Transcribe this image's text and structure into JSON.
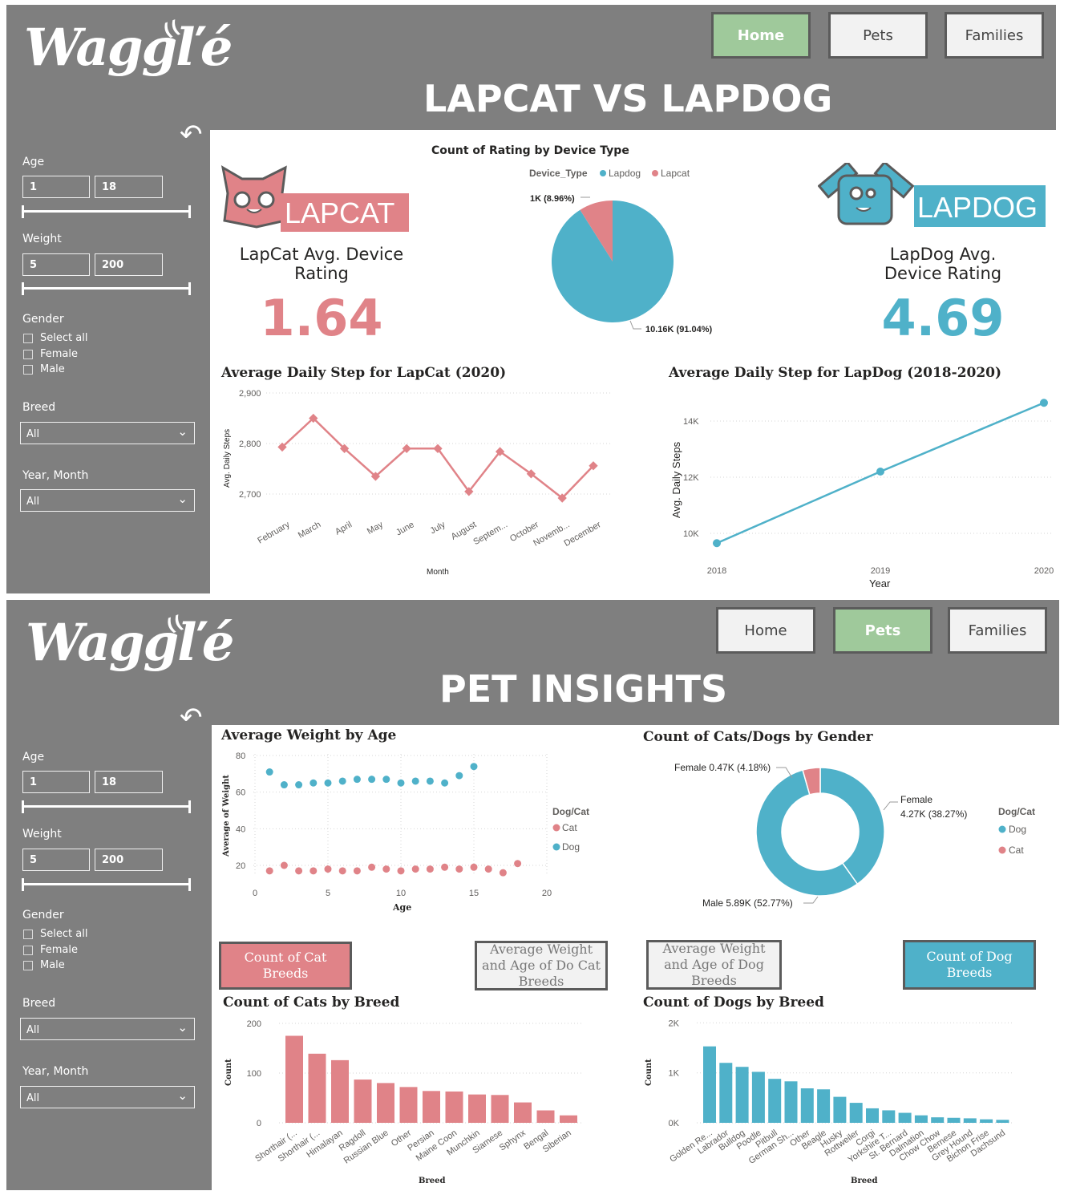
{
  "brand": {
    "logo": "Waggľé",
    "logo_mark": "(("
  },
  "colors": {
    "cat": "#e08388",
    "dog": "#4fb1c9",
    "panel": "#7f7f7f",
    "active": "#9fc99b"
  },
  "nav": {
    "home": "Home",
    "pets": "Pets",
    "families": "Families"
  },
  "icons": {
    "back": "back-arrow-icon",
    "chevron": "chevron-down-icon"
  },
  "filters": {
    "age_label": "Age",
    "age_min": "1",
    "age_max": "18",
    "weight_label": "Weight",
    "weight_min": "5",
    "weight_max": "200",
    "gender_label": "Gender",
    "gender_options": [
      "Select all",
      "Female",
      "Male"
    ],
    "breed_label": "Breed",
    "breed_value": "All",
    "yearmonth_label": "Year, Month",
    "yearmonth_value": "All"
  },
  "page1": {
    "title": "LAPCAT VS LAPDOG",
    "lapcat_logo": "LAPCAT",
    "lapdog_logo": "LAPDOG",
    "lapcat_kpi_label": "LapCat Avg. Device Rating",
    "lapcat_kpi_value": "1.64",
    "lapdog_kpi_label": "LapDog Avg. Device Rating",
    "lapdog_kpi_value": "4.69",
    "pie": {
      "title": "Count of Rating by Device Type",
      "legend_title": "Device_Type",
      "legend": [
        "Lapdog",
        "Lapcat"
      ],
      "slices": [
        {
          "name": "Lapdog",
          "value": 10.16,
          "label": "10.16K (91.04%)"
        },
        {
          "name": "Lapcat",
          "value": 1.0,
          "label": "1K (8.96%)"
        }
      ]
    }
  },
  "page2": {
    "title": "PET INSIGHTS",
    "btn_cat_breeds": "Count of Cat Breeds",
    "btn_cat_weight": "Average Weight and Age of Do Cat Breeds",
    "btn_dog_weight": "Average Weight and Age of Dog Breeds",
    "btn_dog_breeds": "Count of Dog Breeds"
  },
  "chart_data": [
    {
      "type": "line",
      "title": "Average Daily Step for LapCat (2020)",
      "xlabel": "Month",
      "ylabel": "Avg. Daily Steps",
      "categories": [
        "February",
        "March",
        "April",
        "May",
        "June",
        "July",
        "August",
        "Septem...",
        "October",
        "Novemb...",
        "December"
      ],
      "values": [
        2793,
        2850,
        2790,
        2735,
        2790,
        2790,
        2705,
        2784,
        2740,
        2692,
        2756
      ],
      "yticks": [
        "2,700",
        "2,800",
        "2,900"
      ],
      "ylim": [
        2650,
        2900
      ]
    },
    {
      "type": "line",
      "title": "Average Daily Step for LapDog (2018-2020)",
      "xlabel": "Year",
      "ylabel": "Avg. Daily Steps",
      "categories": [
        "2018",
        "2019",
        "2020"
      ],
      "values": [
        9650,
        12200,
        14650
      ],
      "yticks": [
        "10K",
        "12K",
        "14K"
      ],
      "ylim": [
        9000,
        15000
      ]
    },
    {
      "type": "scatter",
      "title": "Average Weight by Age",
      "xlabel": "Age",
      "ylabel": "Average of Weight",
      "legend_title": "Dog/Cat",
      "xlim": [
        0,
        20
      ],
      "ylim": [
        10,
        80
      ],
      "xticks": [
        "0",
        "5",
        "10",
        "15",
        "20"
      ],
      "yticks": [
        "20",
        "40",
        "60",
        "80"
      ],
      "series": [
        {
          "name": "Cat",
          "x": [
            1,
            2,
            3,
            4,
            5,
            6,
            7,
            8,
            9,
            10,
            11,
            12,
            13,
            14,
            15,
            16,
            17,
            18
          ],
          "y": [
            17,
            20,
            17,
            17,
            18,
            17,
            17,
            19,
            18,
            17,
            18,
            18,
            19,
            18,
            19,
            18,
            16,
            21
          ]
        },
        {
          "name": "Dog",
          "x": [
            1,
            2,
            3,
            4,
            5,
            6,
            7,
            8,
            9,
            10,
            11,
            12,
            13,
            14,
            15
          ],
          "y": [
            71,
            64,
            64,
            65,
            65,
            66,
            67,
            67,
            67,
            65,
            66,
            66,
            65,
            69,
            74
          ]
        }
      ]
    },
    {
      "type": "pie",
      "title": "Count of Cats/Dogs by Gender",
      "legend_title": "Dog/Cat",
      "legend": [
        "Dog",
        "Cat"
      ],
      "slices": [
        {
          "name": "Female",
          "value": 4.27,
          "label_name": "Female",
          "label_value": "4.27K (38.27%)"
        },
        {
          "name": "Male",
          "value": 5.89,
          "label": "Male 5.89K (52.77%)"
        },
        {
          "name": "Female",
          "value": 0.47,
          "label": "Female 0.47K (4.18%)"
        }
      ]
    },
    {
      "type": "bar",
      "title": "Count of Cats by Breed",
      "xlabel": "Breed",
      "ylabel": "Count",
      "ylim": [
        0,
        200
      ],
      "yticks": [
        "0",
        "100",
        "200"
      ],
      "categories": [
        "Shorthair (...",
        "Shorthair (...",
        "Himalayan",
        "Ragdoll",
        "Russian Blue",
        "Other",
        "Persian",
        "Maine Coon",
        "Munchkin",
        "Siamese",
        "Sphynx",
        "Bengal",
        "Siberian"
      ],
      "values": [
        175,
        139,
        126,
        87,
        80,
        72,
        64,
        63,
        57,
        56,
        41,
        25,
        15
      ]
    },
    {
      "type": "bar",
      "title": "Count of Dogs by Breed",
      "xlabel": "Breed",
      "ylabel": "Count",
      "ylim": [
        0,
        2000
      ],
      "yticks": [
        "0K",
        "1K",
        "2K"
      ],
      "categories": [
        "Golden Re...",
        "Labrador",
        "Bulldog",
        "Poodle",
        "Pitbull",
        "German Sh...",
        "Other",
        "Beagle",
        "Husky",
        "Rottweiler",
        "Corgi",
        "Yorkshire T...",
        "St. Bernard",
        "Dalmation",
        "Chow Chow",
        "Bernese",
        "Grey Hound",
        "Bichon Frise",
        "Dachsund"
      ],
      "values": [
        1530,
        1200,
        1120,
        1020,
        880,
        830,
        690,
        670,
        520,
        400,
        290,
        250,
        200,
        150,
        110,
        100,
        90,
        70,
        60
      ]
    }
  ]
}
